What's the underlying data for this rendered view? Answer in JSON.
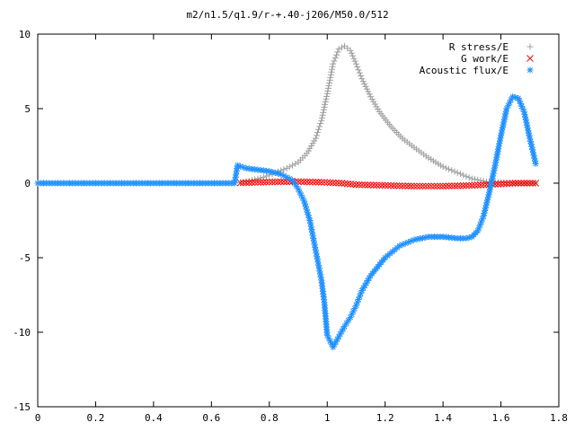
{
  "chart_data": {
    "type": "scatter",
    "title": "m2/n1.5/q1.9/r-+.40-j206/M50.0/512",
    "xlabel": "",
    "ylabel": "",
    "xlim": [
      0,
      1.8
    ],
    "ylim": [
      -15,
      10
    ],
    "grid": false,
    "legend_position": "top-right",
    "x_ticks": [
      "0",
      "0.2",
      "0.4",
      "0.6",
      "0.8",
      "1",
      "1.2",
      "1.4",
      "1.6",
      "1.8"
    ],
    "y_ticks": [
      "10",
      "5",
      "0",
      "-5",
      "-10",
      "-15"
    ],
    "series": [
      {
        "name": "R stress/E",
        "marker": "+",
        "color": "#a0a0a0",
        "points": [
          [
            0.7,
            0.05
          ],
          [
            0.74,
            0.2
          ],
          [
            0.78,
            0.4
          ],
          [
            0.82,
            0.7
          ],
          [
            0.86,
            1.0
          ],
          [
            0.9,
            1.4
          ],
          [
            0.93,
            2.0
          ],
          [
            0.96,
            3.0
          ],
          [
            0.98,
            4.2
          ],
          [
            1.0,
            6.0
          ],
          [
            1.02,
            8.0
          ],
          [
            1.04,
            9.0
          ],
          [
            1.06,
            9.2
          ],
          [
            1.08,
            8.9
          ],
          [
            1.1,
            8.0
          ],
          [
            1.12,
            7.0
          ],
          [
            1.15,
            5.8
          ],
          [
            1.18,
            4.8
          ],
          [
            1.22,
            3.8
          ],
          [
            1.26,
            3.0
          ],
          [
            1.3,
            2.4
          ],
          [
            1.35,
            1.7
          ],
          [
            1.4,
            1.1
          ],
          [
            1.45,
            0.7
          ],
          [
            1.5,
            0.3
          ],
          [
            1.55,
            0.1
          ],
          [
            1.6,
            0.05
          ],
          [
            1.65,
            0.0
          ],
          [
            1.72,
            0.0
          ]
        ]
      },
      {
        "name": "G work/E",
        "marker": "x",
        "color": "#ff0000",
        "points": [
          [
            0.7,
            0.02
          ],
          [
            0.75,
            0.05
          ],
          [
            0.8,
            0.08
          ],
          [
            0.85,
            0.1
          ],
          [
            0.9,
            0.1
          ],
          [
            0.95,
            0.08
          ],
          [
            1.0,
            0.05
          ],
          [
            1.05,
            0.0
          ],
          [
            1.1,
            -0.1
          ],
          [
            1.2,
            -0.15
          ],
          [
            1.3,
            -0.2
          ],
          [
            1.4,
            -0.2
          ],
          [
            1.5,
            -0.15
          ],
          [
            1.55,
            -0.1
          ],
          [
            1.6,
            -0.05
          ],
          [
            1.65,
            0.0
          ],
          [
            1.72,
            0.0
          ]
        ]
      },
      {
        "name": "Acoustic flux/E",
        "marker": "*",
        "color": "#1e90ff",
        "points": [
          [
            0.0,
            0.0
          ],
          [
            0.1,
            0.0
          ],
          [
            0.2,
            0.0
          ],
          [
            0.3,
            0.0
          ],
          [
            0.4,
            0.0
          ],
          [
            0.5,
            0.0
          ],
          [
            0.6,
            0.0
          ],
          [
            0.68,
            0.0
          ],
          [
            0.69,
            1.2
          ],
          [
            0.72,
            1.0
          ],
          [
            0.76,
            0.9
          ],
          [
            0.8,
            0.8
          ],
          [
            0.84,
            0.6
          ],
          [
            0.86,
            0.4
          ],
          [
            0.88,
            0.2
          ],
          [
            0.9,
            -0.4
          ],
          [
            0.92,
            -1.2
          ],
          [
            0.94,
            -2.5
          ],
          [
            0.95,
            -3.5
          ],
          [
            0.96,
            -4.5
          ],
          [
            0.97,
            -5.5
          ],
          [
            0.98,
            -6.5
          ],
          [
            0.99,
            -8.0
          ],
          [
            1.0,
            -10.2
          ],
          [
            1.02,
            -11.0
          ],
          [
            1.04,
            -10.3
          ],
          [
            1.06,
            -9.6
          ],
          [
            1.08,
            -9.0
          ],
          [
            1.1,
            -8.2
          ],
          [
            1.12,
            -7.2
          ],
          [
            1.15,
            -6.2
          ],
          [
            1.2,
            -5.0
          ],
          [
            1.25,
            -4.2
          ],
          [
            1.3,
            -3.8
          ],
          [
            1.35,
            -3.6
          ],
          [
            1.4,
            -3.6
          ],
          [
            1.45,
            -3.7
          ],
          [
            1.48,
            -3.7
          ],
          [
            1.5,
            -3.6
          ],
          [
            1.52,
            -3.2
          ],
          [
            1.54,
            -2.2
          ],
          [
            1.56,
            -0.6
          ],
          [
            1.58,
            1.2
          ],
          [
            1.6,
            3.2
          ],
          [
            1.62,
            5.0
          ],
          [
            1.64,
            5.8
          ],
          [
            1.66,
            5.7
          ],
          [
            1.68,
            4.8
          ],
          [
            1.7,
            3.0
          ],
          [
            1.72,
            1.3
          ]
        ]
      }
    ]
  }
}
